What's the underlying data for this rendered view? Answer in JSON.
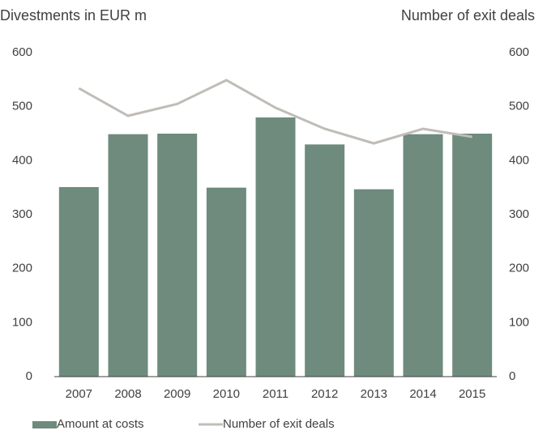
{
  "chart_data": {
    "type": "bar",
    "y_label": "Divestments in EUR m",
    "y2_label": "Number of exit deals",
    "categories": [
      "2007",
      "2008",
      "2009",
      "2010",
      "2011",
      "2012",
      "2013",
      "2014",
      "2015"
    ],
    "series": [
      {
        "name": "Amount at costs",
        "type": "bar",
        "color": "#6e8b7d",
        "values": [
          351,
          449,
          450,
          350,
          480,
          430,
          347,
          449,
          450
        ]
      },
      {
        "name": "Number of exit deals",
        "type": "line",
        "axis": "y2",
        "color": "#c0bcb8",
        "values": [
          534,
          483,
          505,
          549,
          498,
          459,
          432,
          459,
          444
        ]
      }
    ],
    "ylim": [
      0,
      600
    ],
    "yticks": [
      0,
      100,
      200,
      300,
      400,
      500,
      600
    ],
    "y2lim": [
      0,
      600
    ],
    "y2ticks": [
      0,
      100,
      200,
      300,
      400,
      500,
      600
    ],
    "grid": false,
    "legend": "bottom"
  }
}
